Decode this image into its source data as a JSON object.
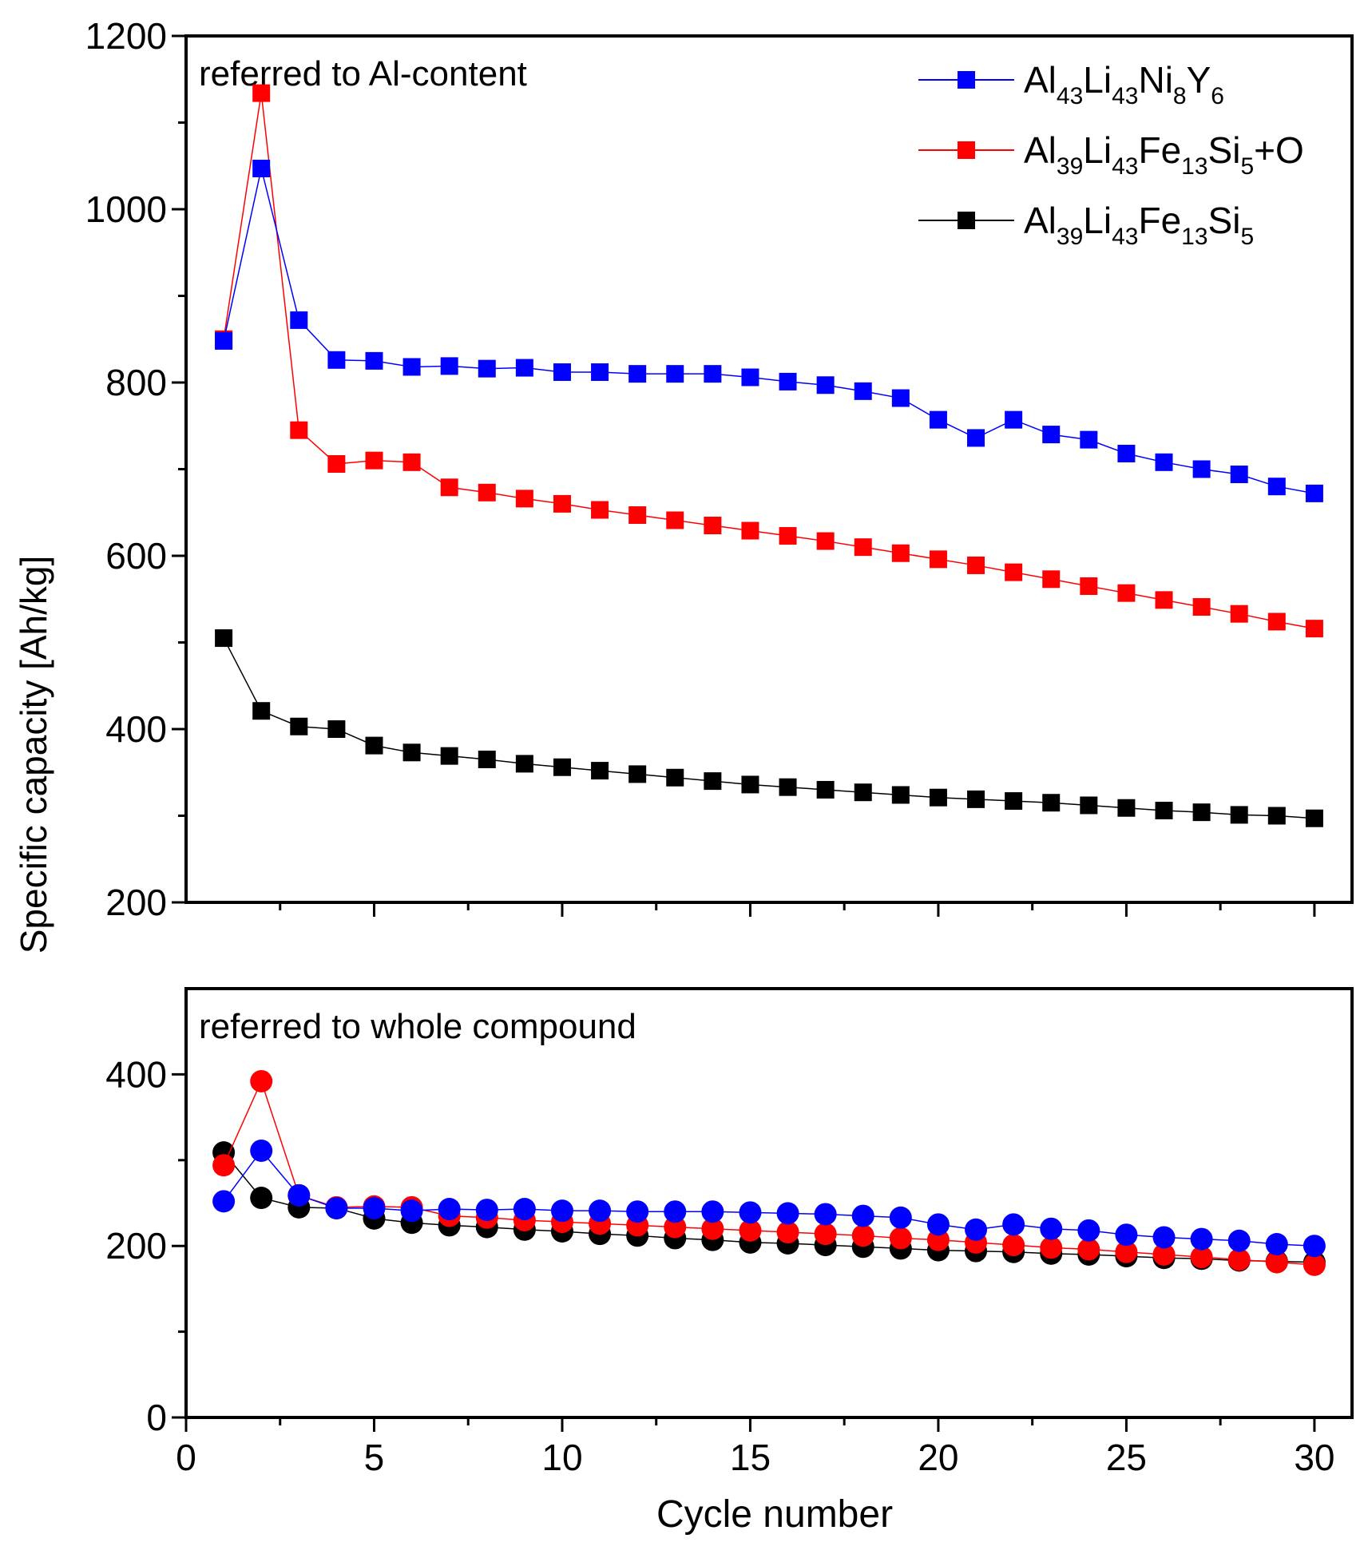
{
  "chart_data": [
    {
      "type": "line",
      "panel": "top",
      "annotation": "referred to Al-content",
      "ylim": [
        200,
        1200
      ],
      "yticks": [
        200,
        400,
        600,
        800,
        1000,
        1200
      ],
      "xlim": [
        0,
        31
      ],
      "xticks": [
        5,
        10,
        15,
        20,
        25,
        30
      ],
      "marker": "square",
      "x": [
        1,
        2,
        3,
        4,
        5,
        6,
        7,
        8,
        9,
        10,
        11,
        12,
        13,
        14,
        15,
        16,
        17,
        18,
        19,
        20,
        21,
        22,
        23,
        24,
        25,
        26,
        27,
        28,
        29,
        30
      ],
      "series": [
        {
          "name": "Al43Li43Ni8Y6",
          "color": "#0000ff",
          "values": [
            848,
            1047,
            872,
            826,
            825,
            818,
            819,
            816,
            817,
            812,
            812,
            810,
            810,
            810,
            806,
            801,
            797,
            790,
            782,
            757,
            736,
            757,
            740,
            734,
            718,
            708,
            700,
            694,
            680,
            672
          ]
        },
        {
          "name": "Al39Li43Fe13Si5+O",
          "color": "#ff0000",
          "values": [
            850,
            1134,
            745,
            706,
            710,
            708,
            679,
            673,
            666,
            660,
            653,
            647,
            641,
            635,
            629,
            623,
            617,
            610,
            603,
            596,
            589,
            581,
            573,
            565,
            557,
            549,
            541,
            533,
            524,
            516
          ]
        },
        {
          "name": "Al39Li43Fe13Si5",
          "color": "#000000",
          "values": [
            505,
            421,
            403,
            400,
            381,
            373,
            369,
            365,
            360,
            356,
            352,
            348,
            344,
            340,
            336,
            333,
            330,
            327,
            324,
            321,
            319,
            317,
            315,
            312,
            309,
            306,
            304,
            301,
            300,
            297
          ]
        }
      ]
    },
    {
      "type": "line",
      "panel": "bottom",
      "annotation": "referred to whole compound",
      "ylim": [
        0,
        500
      ],
      "yticks": [
        0,
        200,
        400
      ],
      "xlim": [
        0,
        31
      ],
      "xticks": [
        0,
        5,
        10,
        15,
        20,
        25,
        30
      ],
      "xlabel": "Cycle number",
      "marker": "circle",
      "x": [
        1,
        2,
        3,
        4,
        5,
        6,
        7,
        8,
        9,
        10,
        11,
        12,
        13,
        14,
        15,
        16,
        17,
        18,
        19,
        20,
        21,
        22,
        23,
        24,
        25,
        26,
        27,
        28,
        29,
        30
      ],
      "series": [
        {
          "name": "Al43Li43Ni8Y6",
          "color": "#0000ff",
          "values": [
            252,
            311,
            259,
            244,
            244,
            241,
            243,
            242,
            243,
            241,
            241,
            240,
            240,
            240,
            239,
            238,
            237,
            235,
            233,
            225,
            219,
            225,
            220,
            218,
            213,
            210,
            208,
            206,
            202,
            200
          ]
        },
        {
          "name": "Al39Li43Fe13Si5+O",
          "color": "#ff0000",
          "values": [
            294,
            392,
            259,
            245,
            246,
            245,
            235,
            233,
            230,
            228,
            226,
            224,
            222,
            220,
            218,
            216,
            214,
            212,
            209,
            207,
            204,
            201,
            198,
            196,
            193,
            190,
            187,
            184,
            181,
            178
          ]
        },
        {
          "name": "Al39Li43Fe13Si5",
          "color": "#000000",
          "values": [
            309,
            256,
            245,
            244,
            232,
            227,
            224,
            222,
            219,
            217,
            214,
            212,
            209,
            207,
            204,
            203,
            201,
            199,
            197,
            195,
            194,
            193,
            191,
            190,
            188,
            186,
            185,
            183,
            182,
            181
          ]
        }
      ]
    }
  ],
  "shared": {
    "ylabel": "Specific capacity [Ah/kg]"
  },
  "legend": {
    "placement": "top-right",
    "entries": [
      {
        "color": "#0000ff",
        "parts": [
          [
            "Al",
            ""
          ],
          [
            "43",
            "sub"
          ],
          [
            "Li",
            ""
          ],
          [
            "43",
            "sub"
          ],
          [
            "Ni",
            ""
          ],
          [
            "8",
            "sub"
          ],
          [
            "Y",
            ""
          ],
          [
            "6",
            "sub"
          ]
        ]
      },
      {
        "color": "#ff0000",
        "parts": [
          [
            "Al",
            ""
          ],
          [
            "39",
            "sub"
          ],
          [
            "Li",
            ""
          ],
          [
            "43",
            "sub"
          ],
          [
            "Fe",
            ""
          ],
          [
            "13",
            "sub"
          ],
          [
            "Si",
            ""
          ],
          [
            "5",
            "sub"
          ],
          [
            "+O",
            ""
          ]
        ]
      },
      {
        "color": "#000000",
        "parts": [
          [
            "Al",
            ""
          ],
          [
            "39",
            "sub"
          ],
          [
            "Li",
            ""
          ],
          [
            "43",
            "sub"
          ],
          [
            "Fe",
            ""
          ],
          [
            "13",
            "sub"
          ],
          [
            "Si",
            ""
          ],
          [
            "5",
            "sub"
          ]
        ]
      }
    ]
  }
}
